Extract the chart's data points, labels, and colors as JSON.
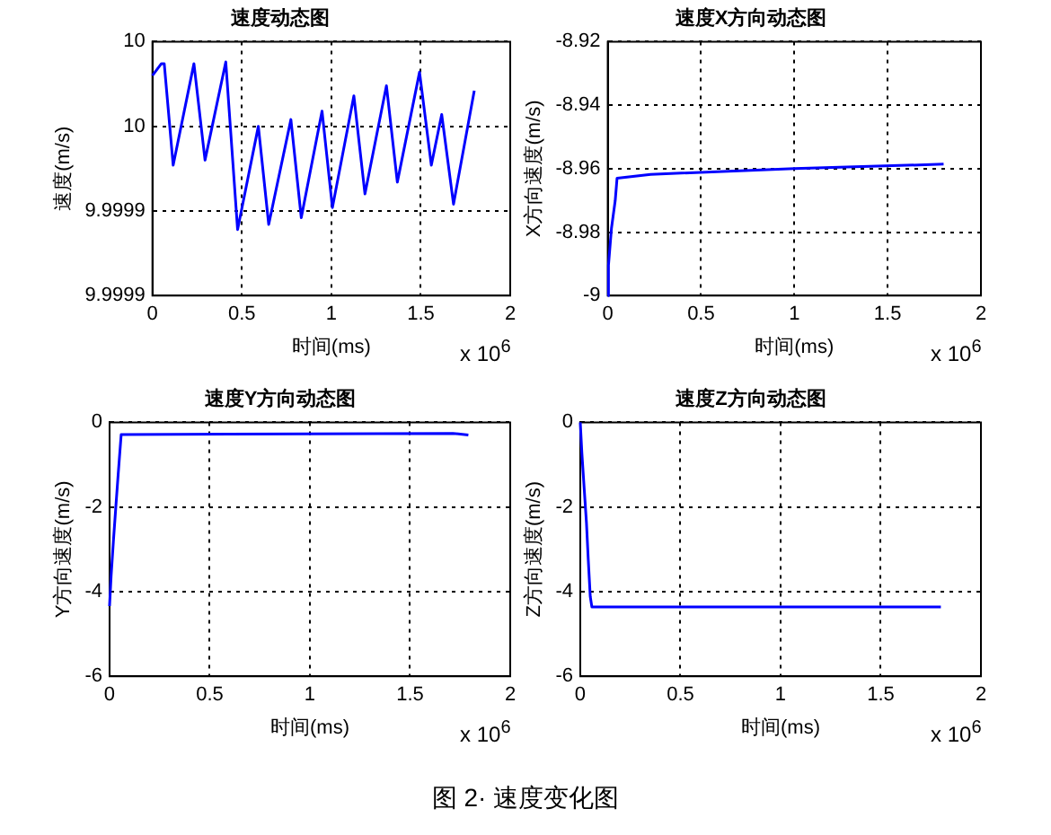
{
  "chart_data": [
    {
      "type": "line",
      "title": "速度动态图",
      "xlabel": "时间(ms)",
      "ylabel": "速度(m/s)",
      "grid": true,
      "marker": "none",
      "line_style": "solid",
      "x": [
        0,
        0.05,
        0.066,
        0.116,
        0.232,
        0.294,
        0.41,
        0.476,
        0.592,
        0.65,
        0.774,
        0.832,
        0.948,
        1.006,
        1.126,
        1.188,
        1.308,
        1.369,
        1.493,
        1.559,
        1.617,
        1.683,
        1.799
      ],
      "series": [
        {
          "color": "#0000ff",
          "values": [
            10.00003,
            10.000037,
            10.000037,
            9.999977,
            10.000037,
            9.99998,
            10.000038,
            9.999939,
            10.0,
            9.999942,
            10.000004,
            9.999946,
            10.000009,
            9.999952,
            10.000018,
            9.99996,
            10.000024,
            9.999967,
            10.000032,
            9.999977,
            10.000007,
            9.999954,
            10.000021
          ]
        }
      ],
      "xlim": [
        0,
        2
      ],
      "xticks": [
        0,
        0.5,
        1,
        1.5,
        2
      ],
      "ylim": [
        9.9999,
        10.00005
      ],
      "yticks": [
        {
          "value": 9.9999,
          "label": "9.9999"
        },
        {
          "value": 9.99995,
          "label": "9.9999"
        },
        {
          "value": 10,
          "label": "10"
        },
        {
          "value": 10.00005,
          "label": "10"
        }
      ],
      "annotations": [
        "x 10$^{6}$",
        "图 2· 速度变化图"
      ]
    },
    {
      "type": "line",
      "title": "速度X方向动态图",
      "xlabel": "时间(ms)",
      "ylabel": "X方向速度(m/s)",
      "grid": true,
      "marker": "none",
      "line_style": "solid",
      "x": [
        0,
        0.004,
        0.02,
        0.04,
        0.05,
        0.23,
        1.0,
        1.8
      ],
      "series": [
        {
          "color": "#0000ff",
          "values": [
            -9,
            -8.9904,
            -8.9788,
            -8.9701,
            -8.963,
            -8.9618,
            -8.96,
            -8.9586
          ]
        }
      ],
      "xlim": [
        0,
        2
      ],
      "xticks": [
        0,
        0.5,
        1,
        1.5,
        2
      ],
      "ylim": [
        -9,
        -8.92
      ],
      "yticks": [
        -9,
        -8.98,
        -8.96,
        -8.94,
        -8.92
      ],
      "annotations": [
        "x 10$^{6}$"
      ]
    },
    {
      "type": "line",
      "title": "速度Y方向动态图",
      "xlabel": "时间(ms)",
      "ylabel": "Y方向速度(m/s)",
      "grid": true,
      "marker": "none",
      "line_style": "solid",
      "x": [
        0,
        0.008,
        0.019,
        0.031,
        0.043,
        0.058,
        1.714,
        1.791
      ],
      "series": [
        {
          "color": "#0000ff",
          "values": [
            -4.34,
            -3.61,
            -2.82,
            -2.02,
            -1.23,
            -0.29,
            -0.26,
            -0.3
          ]
        }
      ],
      "xlim": [
        0,
        2
      ],
      "xticks": [
        0,
        0.5,
        1,
        1.5,
        2
      ],
      "ylim": [
        -6,
        0
      ],
      "yticks": [
        -6,
        -4,
        -2,
        0
      ],
      "annotations": [
        "x 10$^{6}$"
      ]
    },
    {
      "type": "line",
      "title": "速度Z方向动态图",
      "xlabel": "时间(ms)",
      "ylabel": "Z方向速度(m/s)",
      "grid": true,
      "marker": "none",
      "line_style": "solid",
      "x": [
        0,
        0.008,
        0.02,
        0.031,
        0.04,
        0.05,
        0.058,
        1.8
      ],
      "series": [
        {
          "color": "#0000ff",
          "values": [
            0,
            -0.72,
            -1.59,
            -2.38,
            -3.25,
            -4.12,
            -4.36,
            -4.36
          ]
        }
      ],
      "xlim": [
        0,
        2
      ],
      "xticks": [
        0,
        0.5,
        1,
        1.5,
        2
      ],
      "ylim": [
        -6,
        0
      ],
      "yticks": [
        -6,
        -4,
        -2,
        0
      ],
      "annotations": [
        "x 10$^{6}$"
      ]
    }
  ]
}
